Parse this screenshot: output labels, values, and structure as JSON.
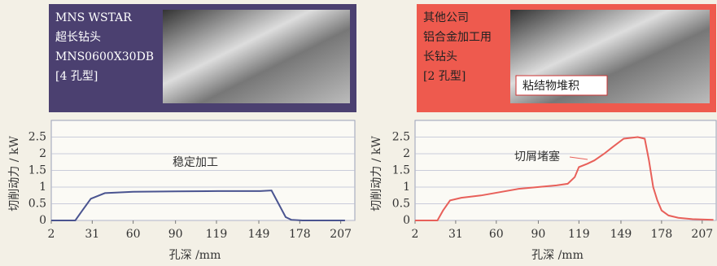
{
  "chart_data": [
    {
      "type": "line",
      "photo_text": [
        "MNS WSTAR",
        "超长钻头",
        "MNS0600X30DB",
        "[4 孔型]"
      ],
      "annotation": "稳定加工",
      "ylabel": "切削动力 / kW",
      "xlabel": "孔深 /mm",
      "xlim": [
        2,
        217
      ],
      "xticks": [
        2,
        31,
        60,
        90,
        119,
        149,
        178,
        207
      ],
      "ylim": [
        0,
        3
      ],
      "yticks": [
        0,
        0.5,
        1,
        1.5,
        2,
        2.5
      ],
      "series": [
        {
          "color": "#4a5490",
          "x": [
            2,
            15,
            19,
            24,
            30,
            40,
            60,
            90,
            120,
            150,
            158,
            163,
            168,
            172,
            180,
            200,
            210
          ],
          "values": [
            0,
            0,
            0,
            0.3,
            0.65,
            0.82,
            0.86,
            0.87,
            0.88,
            0.88,
            0.9,
            0.5,
            0.1,
            0.02,
            0,
            0,
            0
          ]
        }
      ]
    },
    {
      "type": "line",
      "photo_text": [
        "其他公司",
        "铝合金加工用",
        "长钻头",
        "[2 孔型]"
      ],
      "photo_callout": "粘结物堆积",
      "annotation": "切屑堵塞",
      "ylabel": "切削动力 / kW",
      "xlabel": "孔深 /mm",
      "xlim": [
        2,
        217
      ],
      "xticks": [
        2,
        31,
        60,
        90,
        119,
        149,
        178,
        207
      ],
      "ylim": [
        0,
        3
      ],
      "yticks": [
        0,
        0.5,
        1,
        1.5,
        2,
        2.5
      ],
      "series": [
        {
          "color": "#e8605a",
          "x": [
            2,
            18,
            22,
            27,
            35,
            49,
            76,
            103,
            111,
            116,
            119,
            125,
            130,
            137,
            143,
            151,
            161,
            166,
            169,
            172,
            175,
            178,
            183,
            190,
            200,
            215
          ],
          "values": [
            0,
            0,
            0.3,
            0.6,
            0.68,
            0.75,
            0.95,
            1.05,
            1.1,
            1.3,
            1.6,
            1.7,
            1.8,
            2.0,
            2.2,
            2.45,
            2.5,
            2.45,
            1.8,
            1.0,
            0.6,
            0.3,
            0.15,
            0.08,
            0.04,
            0.02
          ]
        }
      ]
    }
  ]
}
